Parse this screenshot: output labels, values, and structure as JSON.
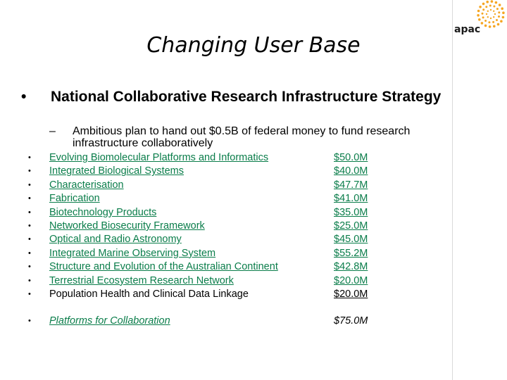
{
  "logo": {
    "text": "apac",
    "dot_color": "#f5a623"
  },
  "slide": {
    "title": "Changing User Base",
    "bullet_main": "National Collaborative Research Infrastructure Strategy",
    "sub_bullet": "Ambitious plan to hand out $0.5B of federal money to fund research infrastructure collaboratively",
    "items": [
      {
        "name": "Evolving Biomolecular Platforms and Informatics",
        "amount": "$50.0M"
      },
      {
        "name": "Integrated Biological Systems",
        "amount": "$40.0M"
      },
      {
        "name": "Characterisation",
        "amount": "$47.7M"
      },
      {
        "name": "Fabrication",
        "amount": "$41.0M"
      },
      {
        "name": "Biotechnology Products",
        "amount": "$35.0M"
      },
      {
        "name": "Networked Biosecurity Framework",
        "amount": "$25.0M"
      },
      {
        "name": "Optical and Radio Astronomy",
        "amount": "$45.0M"
      },
      {
        "name": "Integrated Marine Observing System",
        "amount": "$55.2M"
      },
      {
        "name": "Structure and Evolution of the Australian Continent",
        "amount": "$42.8M"
      },
      {
        "name": "Terrestrial Ecosystem Research Network",
        "amount": "$20.0M"
      },
      {
        "name": "Population Health and Clinical Data Linkage",
        "amount": "$20.0M"
      }
    ],
    "platform": {
      "name": "Platforms for Collaboration",
      "amount": "$75.0M"
    },
    "colors": {
      "link": "#0a7d4a",
      "text": "#000000"
    }
  }
}
